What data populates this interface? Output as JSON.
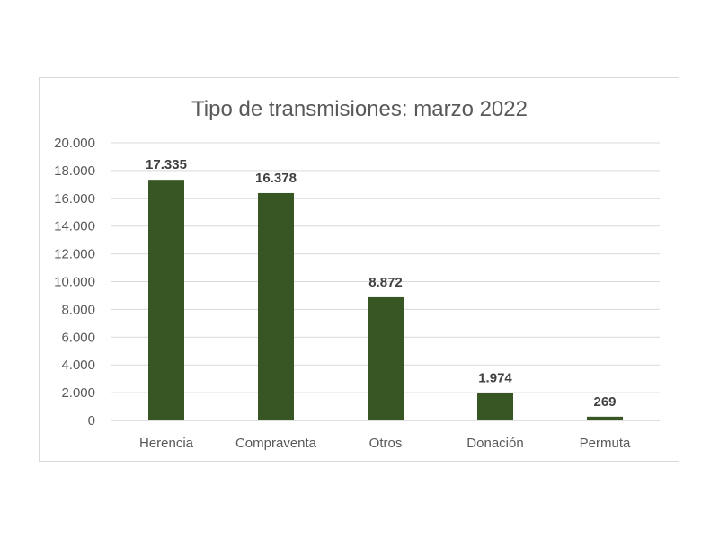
{
  "chart_data": {
    "type": "bar",
    "title": "Tipo de transmisiones: marzo 2022",
    "xlabel": "",
    "ylabel": "",
    "categories": [
      "Herencia",
      "Compraventa",
      "Otros",
      "Donación",
      "Permuta"
    ],
    "values": [
      17335,
      16378,
      8872,
      1974,
      269
    ],
    "data_labels": [
      "17.335",
      "16.378",
      "8.872",
      "1.974",
      "269"
    ],
    "ylim": [
      0,
      20000
    ],
    "yticks": [
      0,
      2000,
      4000,
      6000,
      8000,
      10000,
      12000,
      14000,
      16000,
      18000,
      20000
    ],
    "ytick_labels": [
      "0",
      "2.000",
      "4.000",
      "6.000",
      "8.000",
      "10.000",
      "12.000",
      "14.000",
      "16.000",
      "18.000",
      "20.000"
    ],
    "grid": true,
    "legend": "none",
    "bar_color": "#375623"
  }
}
